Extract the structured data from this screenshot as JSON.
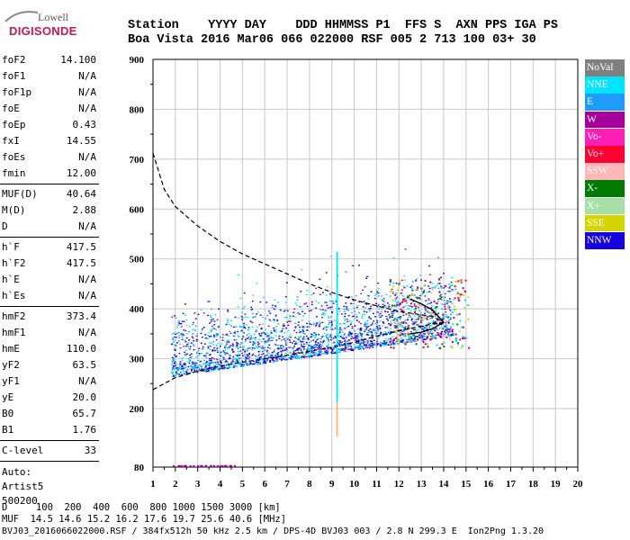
{
  "logo": {
    "top": "Lowell",
    "bottom": "DIGISONDE"
  },
  "header": {
    "line1": "Station    YYYY DAY    DDD HHMMSS P1  FFS S  AXN PPS IGA PS",
    "line2": "Boa Vista 2016 Mar06 066 022000 RSF 005 2 713 100 03+ 30"
  },
  "params_group1": [
    {
      "label": "foF2",
      "value": "14.100"
    },
    {
      "label": "foF1",
      "value": "N/A"
    },
    {
      "label": "foF1p",
      "value": "N/A"
    },
    {
      "label": "foE",
      "value": "N/A"
    },
    {
      "label": "foEp",
      "value": "0.43"
    },
    {
      "label": "fxI",
      "value": "14.55"
    },
    {
      "label": "foEs",
      "value": "N/A"
    },
    {
      "label": "fmin",
      "value": "12.00"
    }
  ],
  "params_group2": [
    {
      "label": "MUF(D)",
      "value": "40.64"
    },
    {
      "label": "M(D)",
      "value": "2.88"
    },
    {
      "label": "D",
      "value": "N/A"
    }
  ],
  "params_group3": [
    {
      "label": "h`F",
      "value": "417.5"
    },
    {
      "label": "h`F2",
      "value": "417.5"
    },
    {
      "label": "h`E",
      "value": "N/A"
    },
    {
      "label": "h`Es",
      "value": "N/A"
    }
  ],
  "params_group4": [
    {
      "label": "hmF2",
      "value": "373.4"
    },
    {
      "label": "hmF1",
      "value": "N/A"
    },
    {
      "label": "hmE",
      "value": "110.0"
    },
    {
      "label": "yF2",
      "value": "63.5"
    },
    {
      "label": "yF1",
      "value": "N/A"
    },
    {
      "label": "yE",
      "value": "20.0"
    },
    {
      "label": "B0",
      "value": "65.7"
    },
    {
      "label": "B1",
      "value": "1.76"
    }
  ],
  "params_group5": [
    {
      "label": "C-level",
      "value": "33"
    }
  ],
  "auto": {
    "line1": "Auto:",
    "line2": "Artist5",
    "line3": "500200"
  },
  "legend": [
    {
      "label": "NoVal",
      "color": "#808080"
    },
    {
      "label": "NNE",
      "color": "#00e5ff"
    },
    {
      "label": "E",
      "color": "#1e9bff"
    },
    {
      "label": "W",
      "color": "#a4009a"
    },
    {
      "label": "Vo-",
      "color": "#ff1fb4"
    },
    {
      "label": "Vo+",
      "color": "#ff0033"
    },
    {
      "label": "SSW",
      "color": "#ffb6b6"
    },
    {
      "label": "X-",
      "color": "#007a00"
    },
    {
      "label": "X+",
      "color": "#a7e0a7"
    },
    {
      "label": "SSE",
      "color": "#d4d400"
    },
    {
      "label": "NNW",
      "color": "#1500e0"
    }
  ],
  "chart_data": {
    "type": "scatter",
    "x_ticks": [
      "1",
      "2",
      "3",
      "4",
      "5",
      "6",
      "7",
      "8",
      "9",
      "10",
      "11",
      "12",
      "13",
      "14",
      "15",
      "16",
      "17",
      "18",
      "19",
      "20"
    ],
    "y_ticks": [
      "80",
      "200",
      "300",
      "400",
      "500",
      "600",
      "700",
      "800",
      "900"
    ],
    "xlim": [
      1,
      20
    ],
    "ylim": [
      80,
      900
    ],
    "profile_dashed": [
      [
        1.0,
        712
      ],
      [
        1.5,
        640
      ],
      [
        2.0,
        605
      ],
      [
        3.0,
        566
      ],
      [
        4.0,
        535
      ],
      [
        5.0,
        510
      ],
      [
        6.0,
        490
      ],
      [
        7.0,
        470
      ],
      [
        8.0,
        450
      ],
      [
        9.0,
        433
      ],
      [
        10.0,
        418
      ],
      [
        11.0,
        406
      ],
      [
        12.0,
        395
      ],
      [
        13.0,
        388
      ],
      [
        13.5,
        385
      ],
      [
        14.0,
        373
      ]
    ],
    "profile_lower": [
      [
        1.0,
        238
      ],
      [
        2.0,
        262
      ],
      [
        3.0,
        275
      ],
      [
        4.0,
        285
      ],
      [
        5.0,
        293
      ],
      [
        6.0,
        300
      ],
      [
        7.0,
        307
      ],
      [
        8.0,
        315
      ],
      [
        9.0,
        323
      ],
      [
        10.0,
        333
      ],
      [
        11.0,
        345
      ],
      [
        12.0,
        356
      ],
      [
        13.0,
        365
      ],
      [
        13.5,
        370
      ],
      [
        14.0,
        373
      ]
    ],
    "profile_solid": [
      [
        12.5,
        420
      ],
      [
        13.0,
        410
      ],
      [
        13.5,
        398
      ],
      [
        14.0,
        373
      ],
      [
        13.5,
        360
      ],
      [
        13.0,
        353
      ],
      [
        12.5,
        350
      ]
    ],
    "echo_cluster": {
      "x_range": [
        1.7,
        14.5
      ],
      "h_range": [
        250,
        470
      ]
    }
  },
  "bottom": {
    "line1": "D     100  200  400  600  800 1000 1500 3000 [km]",
    "line2": "MUF  14.5 14.6 15.2 16.2 17.6 19.7 25.6 40.6 [MHz]",
    "line3": "BVJ03_2016066022000.RSF / 384fx512h 50 kHz 2.5 km / DPS-4D BVJ03 003 / 2.8 N 299.3 E  Ion2Png 1.3.20"
  }
}
